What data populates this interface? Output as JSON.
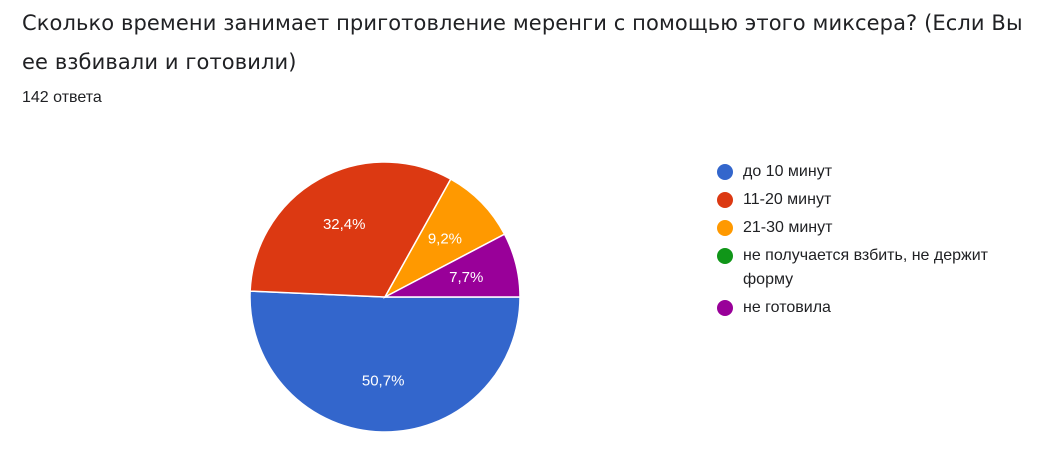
{
  "question": {
    "title": "Сколько времени занимает приготовление меренги с помощью этого миксера? (Если Вы ее взбивали и готовили)",
    "response_count": "142 ответа"
  },
  "legend": {
    "items": [
      {
        "label": "до 10 минут",
        "color": "#3366cc"
      },
      {
        "label": "11-20 минут",
        "color": "#dc3912"
      },
      {
        "label": "21-30 минут",
        "color": "#ff9900"
      },
      {
        "label": "не получается взбить, не держит форму",
        "color": "#109618"
      },
      {
        "label": "не готовила",
        "color": "#990099"
      }
    ]
  },
  "chart_data": {
    "type": "pie",
    "title": "Сколько времени занимает приготовление меренги с помощью этого миксера? (Если Вы ее взбивали и готовили)",
    "subtitle": "142 ответа",
    "categories": [
      "до 10 минут",
      "11-20 минут",
      "21-30 минут",
      "не получается взбить, не держит форму",
      "не готовила"
    ],
    "values": [
      50.7,
      32.4,
      9.2,
      0,
      7.7
    ],
    "labels": [
      "50,7%",
      "32,4%",
      "9,2%",
      "",
      "7,7%"
    ],
    "colors": [
      "#3366cc",
      "#dc3912",
      "#ff9900",
      "#109618",
      "#990099"
    ],
    "legend_position": "right",
    "total_responses": 142
  }
}
